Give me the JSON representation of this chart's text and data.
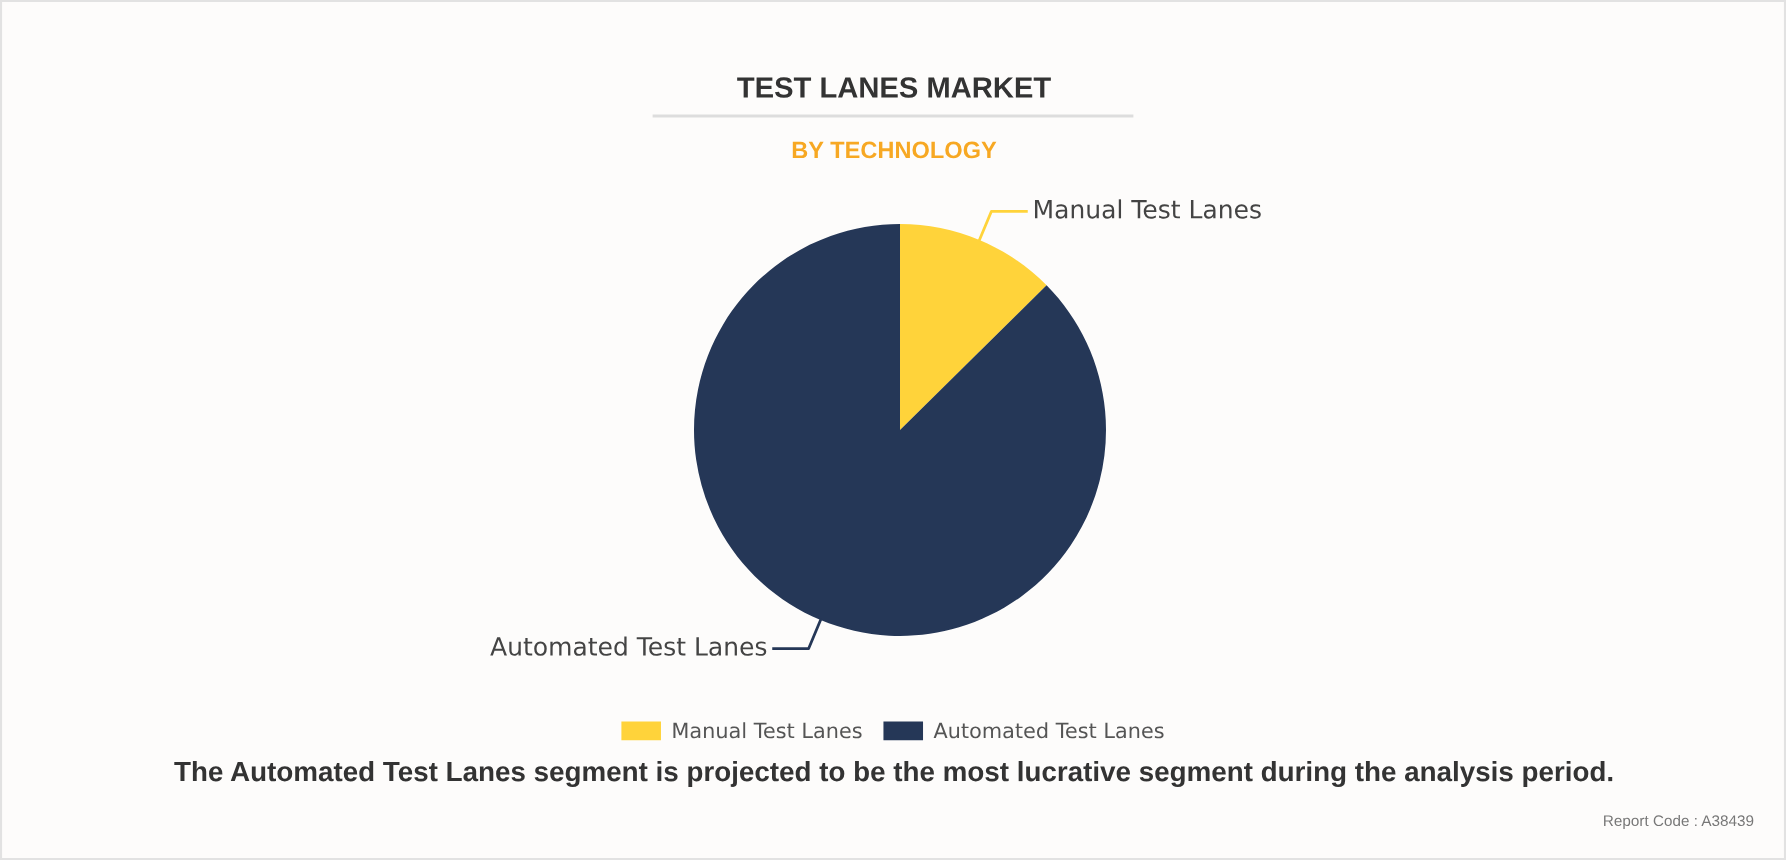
{
  "chart_data": {
    "type": "pie",
    "title": "TEST LANES MARKET",
    "subtitle": "BY TECHNOLOGY",
    "categories": [
      "Manual Test Lanes",
      "Automated Test Lanes"
    ],
    "values": [
      12.6,
      87.4
    ],
    "colors": [
      "#ffd33a",
      "#253757"
    ],
    "legend": "bottom",
    "annotations": [
      "The Automated Test Lanes segment is projected to be the most lucrative segment during the analysis period.",
      "Report Code : A38439"
    ]
  }
}
